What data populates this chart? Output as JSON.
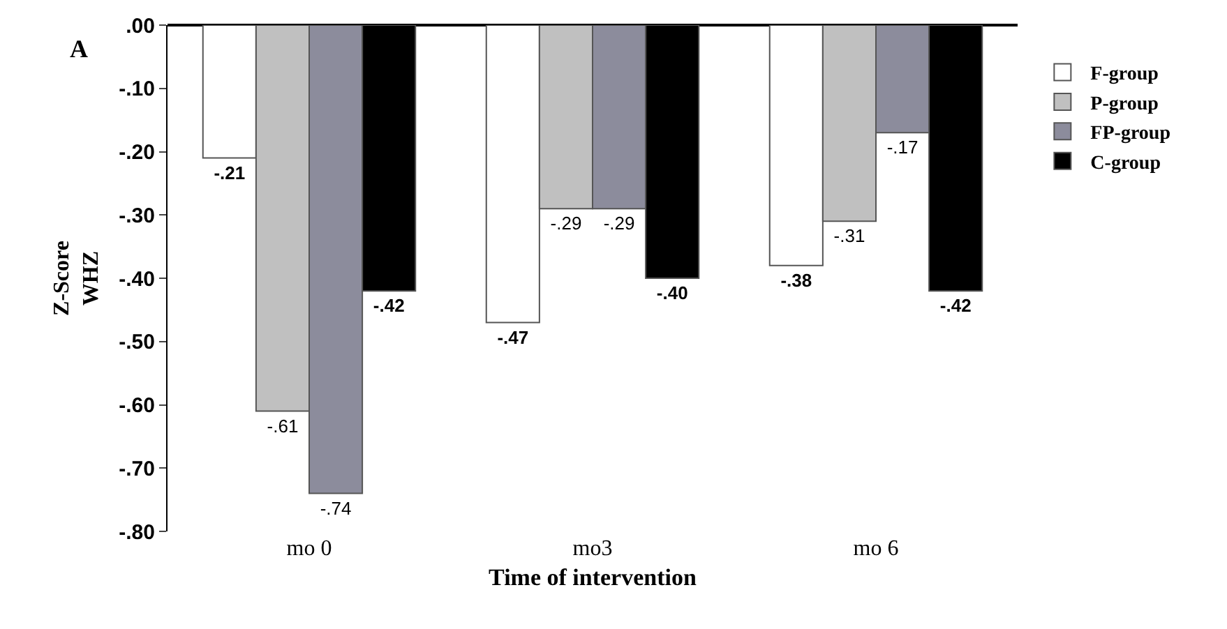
{
  "chart_data": {
    "type": "bar",
    "title": "A",
    "xlabel": "Time of intervention",
    "ylabel": "Z-Score\nWHZ",
    "categories": [
      "mo 0",
      "mo3",
      "mo 6"
    ],
    "series": [
      {
        "name": "F-group",
        "color": "#ffffff",
        "values": [
          -0.21,
          -0.47,
          -0.38
        ],
        "value_labels": [
          "-.21",
          "-.47",
          "-.38"
        ]
      },
      {
        "name": "P-group",
        "color": "#c0c0c0",
        "values": [
          -0.61,
          -0.29,
          -0.31
        ],
        "value_labels": [
          "-.61",
          "-.29",
          "-.31"
        ]
      },
      {
        "name": "FP-group",
        "color": "#8c8c9c",
        "values": [
          -0.74,
          -0.29,
          -0.17
        ],
        "value_labels": [
          "-.74",
          "-.29",
          "-.17"
        ]
      },
      {
        "name": "C-group",
        "color": "#000000",
        "values": [
          -0.42,
          -0.4,
          -0.42
        ],
        "value_labels": [
          "-.42",
          "-.40",
          "-.42"
        ]
      }
    ],
    "ylim": [
      -0.8,
      0
    ],
    "yticks": [
      {
        "value": 0,
        "label": ".00"
      },
      {
        "value": -0.1,
        "label": "-.10"
      },
      {
        "value": -0.2,
        "label": "-.20"
      },
      {
        "value": -0.3,
        "label": "-.30"
      },
      {
        "value": -0.4,
        "label": "-.40"
      },
      {
        "value": -0.5,
        "label": "-.50"
      },
      {
        "value": -0.6,
        "label": "-.60"
      },
      {
        "value": -0.7,
        "label": "-.70"
      },
      {
        "value": -0.8,
        "label": "-.80"
      }
    ],
    "grid": false,
    "legend": "right"
  }
}
